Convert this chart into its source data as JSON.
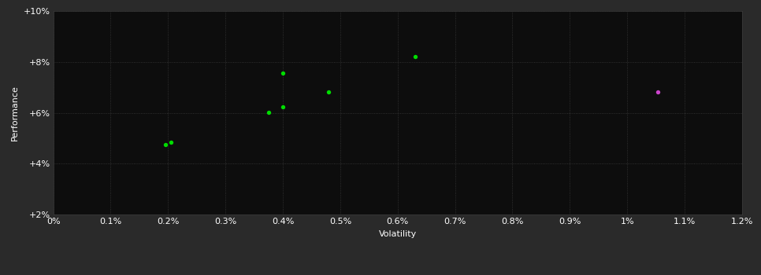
{
  "title": "",
  "xlabel": "Volatility",
  "ylabel": "Performance",
  "background_color": "#2a2a2a",
  "plot_bg_color": "#0d0d0d",
  "grid_color": "#3a3a3a",
  "text_color": "#ffffff",
  "green_points": [
    [
      0.195,
      4.75
    ],
    [
      0.205,
      4.85
    ],
    [
      0.375,
      6.02
    ],
    [
      0.4,
      6.22
    ],
    [
      0.4,
      7.55
    ],
    [
      0.48,
      6.82
    ],
    [
      0.63,
      8.2
    ]
  ],
  "magenta_points": [
    [
      1.053,
      6.82
    ]
  ],
  "xlim": [
    0.0,
    1.2
  ],
  "ylim": [
    2.0,
    10.0
  ],
  "xticks": [
    0.0,
    0.1,
    0.2,
    0.3,
    0.4,
    0.5,
    0.6,
    0.7,
    0.8,
    0.9,
    1.0,
    1.1,
    1.2
  ],
  "yticks": [
    2,
    4,
    6,
    8,
    10
  ],
  "xtick_labels": [
    "0%",
    "0.1%",
    "0.2%",
    "0.3%",
    "0.4%",
    "0.5%",
    "0.6%",
    "0.7%",
    "0.8%",
    "0.9%",
    "1%",
    "1.1%",
    "1.2%"
  ],
  "ytick_labels": [
    "+2%",
    "+4%",
    "+6%",
    "+8%",
    "+10%"
  ],
  "dot_size": 15,
  "green_color": "#00dd00",
  "magenta_color": "#cc44cc",
  "figsize": [
    9.66,
    3.5
  ],
  "dpi": 100
}
